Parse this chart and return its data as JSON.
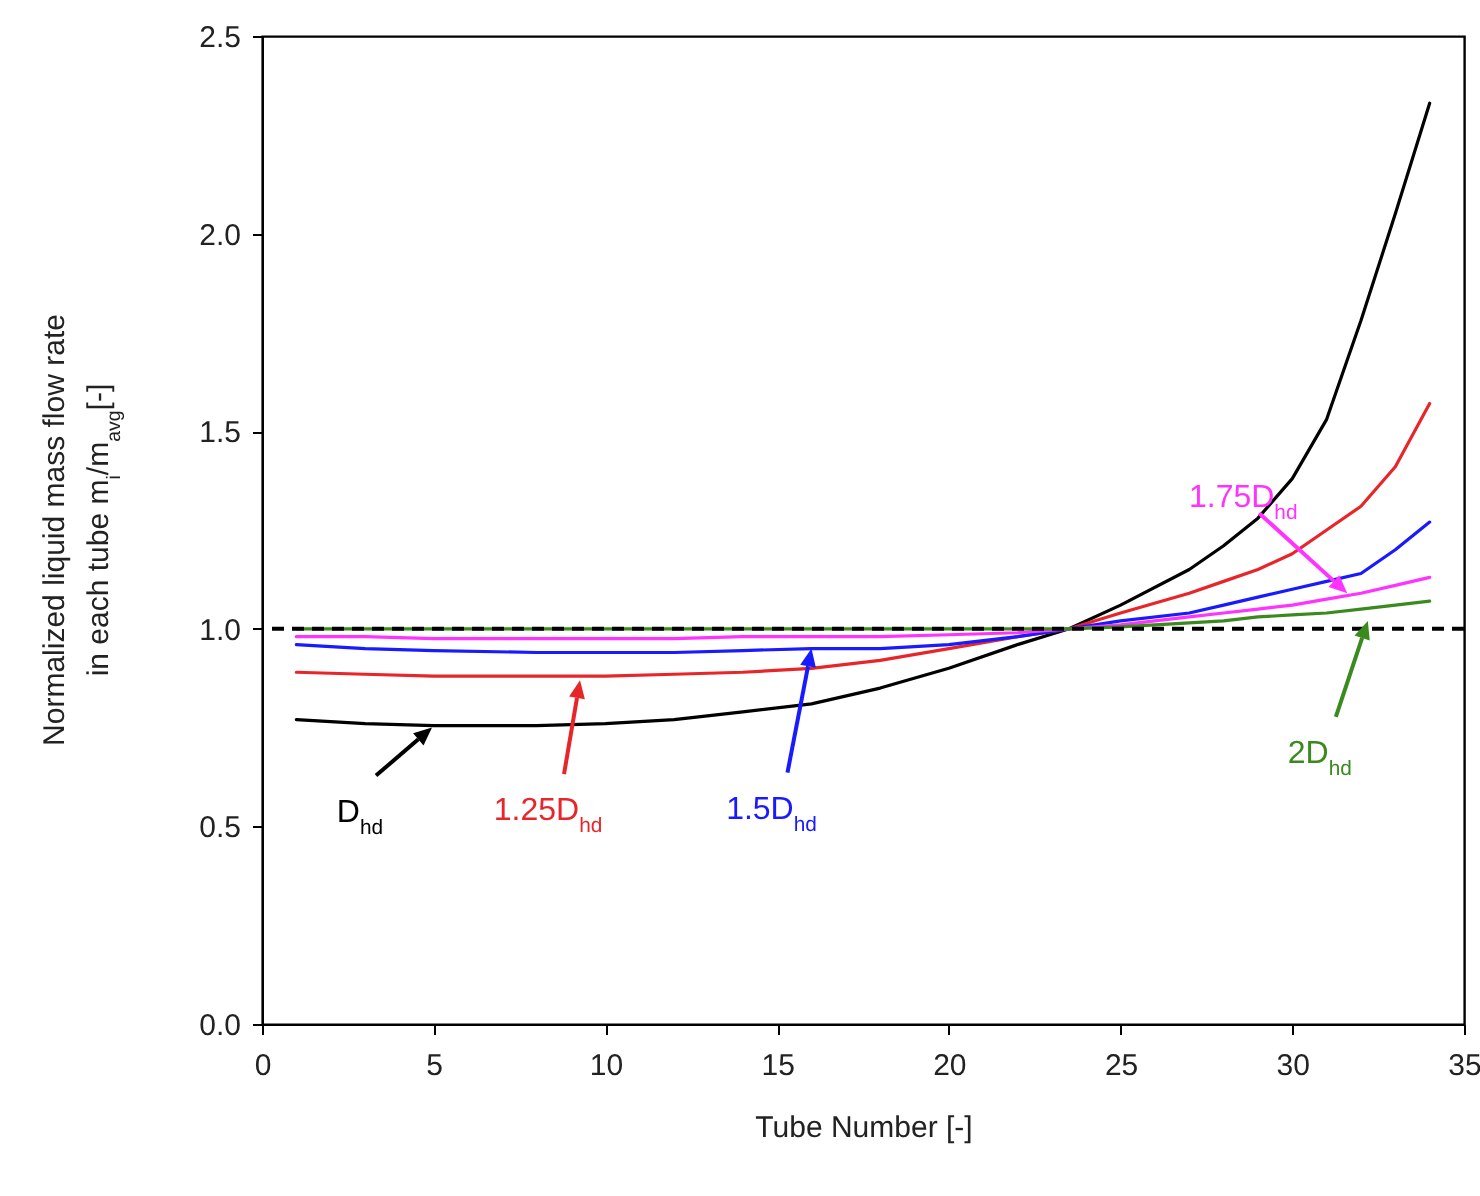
{
  "chart_data": {
    "type": "line",
    "xlabel": "Tube Number [-]",
    "ylabel": "Normalized liquid mass flow rate\nin each tube m$_{i}$/m$_{avg}$[-]",
    "x": [
      1,
      3,
      5,
      8,
      10,
      12,
      14,
      16,
      18,
      20,
      22,
      23.5,
      25,
      27,
      28,
      29,
      30,
      31,
      32,
      33,
      34
    ],
    "series": [
      {
        "color": "#000000",
        "values": [
          0.77,
          0.76,
          0.755,
          0.755,
          0.76,
          0.77,
          0.79,
          0.81,
          0.85,
          0.9,
          0.96,
          1.0,
          1.06,
          1.15,
          1.21,
          1.28,
          1.38,
          1.53,
          1.78,
          2.05,
          2.33
        ]
      },
      {
        "color": "#e8262a",
        "values": [
          0.89,
          0.885,
          0.88,
          0.88,
          0.88,
          0.885,
          0.89,
          0.9,
          0.92,
          0.95,
          0.98,
          1.0,
          1.04,
          1.09,
          1.12,
          1.15,
          1.19,
          1.25,
          1.31,
          1.41,
          1.57
        ]
      },
      {
        "color": "#1a1aff",
        "values": [
          0.96,
          0.95,
          0.945,
          0.94,
          0.94,
          0.94,
          0.945,
          0.95,
          0.95,
          0.96,
          0.98,
          1.0,
          1.02,
          1.04,
          1.06,
          1.08,
          1.1,
          1.12,
          1.14,
          1.2,
          1.27
        ]
      },
      {
        "color": "#ff33ff",
        "values": [
          0.98,
          0.98,
          0.975,
          0.975,
          0.975,
          0.975,
          0.98,
          0.98,
          0.98,
          0.985,
          0.99,
          1.0,
          1.01,
          1.03,
          1.04,
          1.05,
          1.06,
          1.075,
          1.09,
          1.11,
          1.13
        ]
      },
      {
        "color": "#3a8a1e",
        "values": [
          1.0,
          1.0,
          1.0,
          1.0,
          1.0,
          1.0,
          1.0,
          1.0,
          1.0,
          1.0,
          1.0,
          1.0,
          1.005,
          1.015,
          1.02,
          1.03,
          1.035,
          1.04,
          1.05,
          1.06,
          1.07
        ]
      }
    ],
    "xlim": [
      0,
      35
    ],
    "xticks": [
      0,
      5,
      10,
      15,
      20,
      25,
      30,
      35
    ],
    "ylim": [
      0,
      2.5
    ],
    "yticks": [
      {
        "value": 0,
        "label": "0.0"
      },
      {
        "value": 0.5,
        "label": "0.5"
      },
      {
        "value": 1,
        "label": "1.0"
      },
      {
        "value": 1.5,
        "label": "1.5"
      },
      {
        "value": 2,
        "label": "2.0"
      },
      {
        "value": 2.5,
        "label": "2.5"
      }
    ],
    "ref_lines": [
      {
        "axis": "y",
        "value": 1.0,
        "color": "#000000",
        "line_style": "dashed"
      }
    ],
    "annotations": [
      {
        "text": "D$_{hd}$",
        "x": 4.95,
        "y": 0.75
      },
      {
        "text": "1.25D$_{hd}$",
        "x": 9.26,
        "y": 0.87
      },
      {
        "text": "1.5D$_{hd}$",
        "x": 16.0,
        "y": 0.95
      },
      {
        "text": "1.75D$_{hd}$",
        "x": 31.6,
        "y": 1.09
      },
      {
        "text": "2D$_{hd}$",
        "x": 32.2,
        "y": 1.02
      }
    ],
    "grid": false,
    "marker": "none",
    "line_style": "solid"
  }
}
